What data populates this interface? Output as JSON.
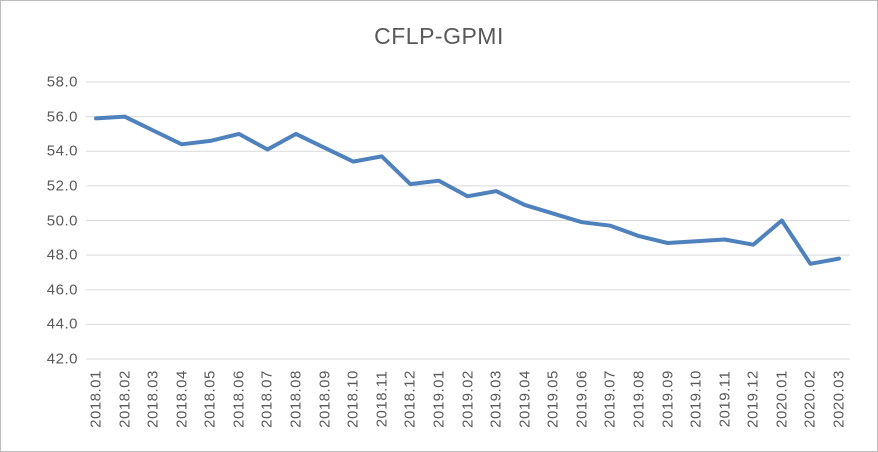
{
  "chart_data": {
    "type": "line",
    "title": "CFLP-GPMI",
    "x": [
      "2018.01",
      "2018.02",
      "2018.03",
      "2018.04",
      "2018.05",
      "2018.06",
      "2018.07",
      "2018.08",
      "2018.09",
      "2018.10",
      "2018.11",
      "2018.12",
      "2019.01",
      "2019.02",
      "2019.03",
      "2019.04",
      "2019.05",
      "2019.06",
      "2019.07",
      "2019.08",
      "2019.09",
      "2019.10",
      "2019.11",
      "2019.12",
      "2020.01",
      "2020.02",
      "2020.03"
    ],
    "series": [
      {
        "name": "CFLP-GPMI",
        "values": [
          55.9,
          56.0,
          55.2,
          54.4,
          54.6,
          55.0,
          54.1,
          55.0,
          54.2,
          53.4,
          53.7,
          52.1,
          52.3,
          51.4,
          51.7,
          50.9,
          50.4,
          49.9,
          49.7,
          49.1,
          48.7,
          48.8,
          48.9,
          48.6,
          50.0,
          47.5,
          47.8
        ]
      }
    ],
    "xlabel": "",
    "ylabel": "",
    "ylim": [
      42.0,
      58.0
    ],
    "ytick_step": 2.0,
    "yticks": [
      "58.0",
      "56.0",
      "54.0",
      "52.0",
      "50.0",
      "48.0",
      "46.0",
      "44.0",
      "42.0"
    ],
    "grid": "horizontal",
    "legend": "none",
    "colors": {
      "line": "#4F81BD",
      "gridline": "#D9D9D9",
      "title_text": "#595959",
      "axis_text": "#595959",
      "background": "#FFFFFF",
      "frame_border": "#BDBDBD"
    }
  }
}
